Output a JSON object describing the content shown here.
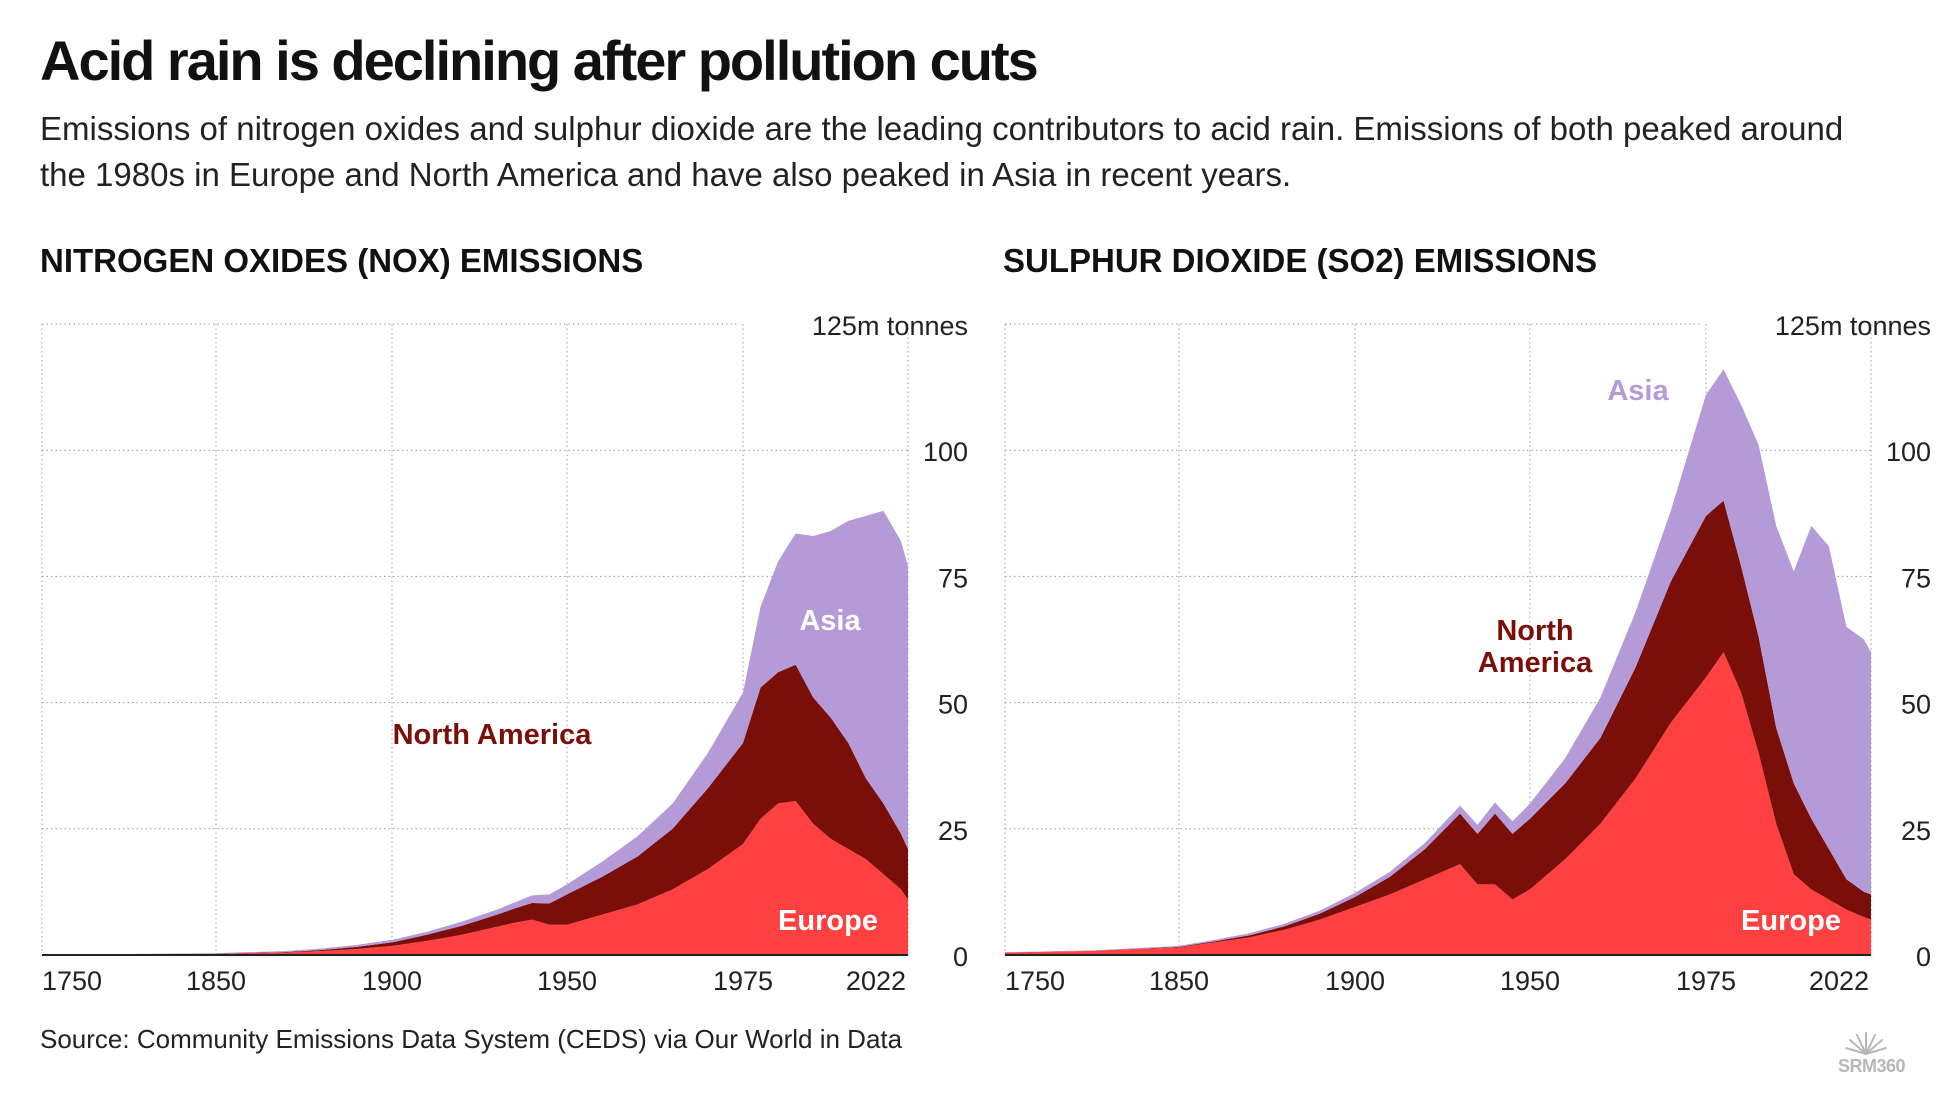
{
  "title": "Acid rain is declining after pollution cuts",
  "subtitle": "Emissions of nitrogen oxides and sulphur dioxide are the leading contributors to acid rain. Emissions of both peaked around the 1980s in Europe and North America and have also peaked in Asia in recent years.",
  "source": "Source: Community Emissions Data System (CEDS) via Our World in Data",
  "logo": {
    "text": "SRM360",
    "icon": "sunburst-icon"
  },
  "colors": {
    "europe": "#ff4040",
    "north_america": "#7a0f0a",
    "asia": "#b59ad8",
    "na_label": "#7a0f0a",
    "asia_label_on_chart": "#ffffff",
    "asia_label_above": "#b59ad8",
    "europe_label": "#ffffff"
  },
  "chart_data": [
    {
      "type": "area",
      "stacked": true,
      "title": "NITROGEN OXIDES (NOX) EMISSIONS",
      "ylabel": "",
      "y_unit_label": "125m tonnes",
      "xlim": [
        1750,
        2022
      ],
      "ylim": [
        0,
        125
      ],
      "x_ticks": [
        "1750",
        "1850",
        "1900",
        "1950",
        "1975",
        "2022"
      ],
      "y_ticks": [
        "0",
        "25",
        "50",
        "75",
        "100"
      ],
      "grid": true,
      "legend_placement": "direct labels",
      "annotations": [
        "Asia",
        "North America",
        "Europe"
      ],
      "x": [
        1750,
        1800,
        1850,
        1870,
        1880,
        1890,
        1900,
        1910,
        1920,
        1930,
        1935,
        1940,
        1945,
        1950,
        1955,
        1960,
        1965,
        1970,
        1975,
        1980,
        1985,
        1990,
        1995,
        2000,
        2005,
        2010,
        2015,
        2020,
        2022
      ],
      "series": [
        {
          "name": "Europe",
          "values": [
            0.05,
            0.1,
            0.2,
            0.5,
            0.8,
            1.2,
            1.8,
            2.8,
            4.0,
            5.6,
            6.4,
            7.0,
            6.0,
            6.0,
            8.0,
            10.0,
            13.0,
            17.0,
            22.0,
            27.0,
            30.0,
            30.5,
            26.0,
            23.0,
            21.0,
            19.0,
            16.0,
            13.0,
            11.0
          ]
        },
        {
          "name": "North America",
          "values": [
            0.0,
            0.01,
            0.05,
            0.1,
            0.2,
            0.4,
            0.7,
            1.2,
            1.8,
            2.4,
            2.8,
            3.3,
            4.2,
            6.0,
            7.5,
            9.5,
            12.0,
            16.0,
            20.0,
            26.0,
            26.0,
            27.0,
            25.0,
            24.0,
            21.0,
            16.0,
            14.0,
            11.0,
            10.0
          ]
        },
        {
          "name": "Asia",
          "values": [
            0.05,
            0.08,
            0.12,
            0.2,
            0.3,
            0.4,
            0.5,
            0.6,
            0.8,
            1.0,
            1.2,
            1.5,
            1.8,
            2.0,
            3.0,
            4.0,
            5.0,
            7.0,
            10.0,
            16.0,
            22.0,
            26.0,
            32.0,
            37.0,
            44.0,
            52.0,
            58.0,
            58.0,
            56.0
          ]
        }
      ]
    },
    {
      "type": "area",
      "stacked": true,
      "title": "SULPHUR DIOXIDE (SO2) EMISSIONS",
      "ylabel": "",
      "y_unit_label": "125m tonnes",
      "xlim": [
        1750,
        2022
      ],
      "ylim": [
        0,
        125
      ],
      "x_ticks": [
        "1750",
        "1850",
        "1900",
        "1950",
        "1975",
        "2022"
      ],
      "y_ticks": [
        "0",
        "25",
        "50",
        "75",
        "100"
      ],
      "grid": true,
      "legend_placement": "direct labels",
      "annotations": [
        "Asia",
        "North America",
        "Europe"
      ],
      "x": [
        1750,
        1800,
        1850,
        1860,
        1870,
        1880,
        1890,
        1900,
        1910,
        1920,
        1930,
        1935,
        1940,
        1945,
        1950,
        1955,
        1960,
        1965,
        1970,
        1975,
        1980,
        1985,
        1990,
        1995,
        2000,
        2005,
        2010,
        2015,
        2020,
        2022
      ],
      "series": [
        {
          "name": "Europe",
          "values": [
            0.5,
            0.8,
            1.5,
            2.5,
            3.5,
            5.0,
            7.0,
            9.5,
            12.0,
            15.0,
            18.0,
            14.0,
            14.0,
            11.0,
            13.0,
            19.0,
            26.0,
            35.0,
            46.0,
            55.0,
            60.0,
            52.0,
            40.0,
            26.0,
            16.0,
            13.0,
            11.0,
            9.0,
            7.5,
            7.0
          ]
        },
        {
          "name": "North America",
          "values": [
            0.0,
            0.02,
            0.1,
            0.2,
            0.4,
            0.7,
            1.2,
            2.0,
            3.5,
            6.0,
            10.0,
            10.0,
            14.0,
            13.0,
            14.0,
            15.0,
            17.0,
            22.0,
            28.0,
            32.0,
            30.0,
            25.0,
            23.0,
            19.0,
            18.0,
            14.0,
            10.0,
            6.0,
            5.0,
            5.0
          ]
        },
        {
          "name": "Asia",
          "values": [
            0.05,
            0.1,
            0.2,
            0.3,
            0.4,
            0.5,
            0.6,
            0.8,
            1.0,
            1.2,
            1.6,
            1.8,
            2.2,
            2.5,
            3.0,
            5.0,
            8.0,
            11.0,
            14.0,
            24.0,
            26.0,
            32.0,
            38.0,
            40.0,
            42.0,
            58.0,
            60.0,
            50.0,
            50.0,
            48.0
          ]
        }
      ]
    }
  ]
}
